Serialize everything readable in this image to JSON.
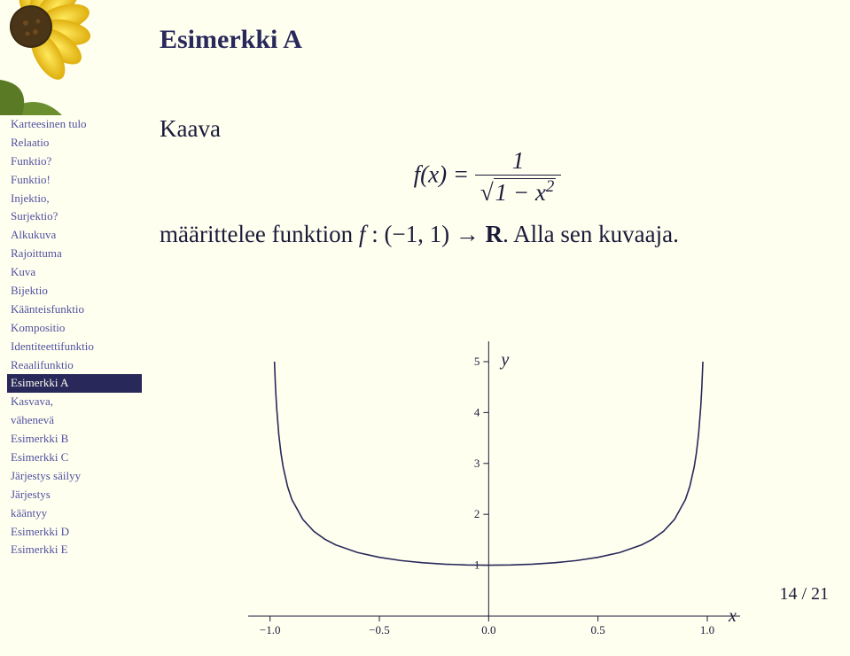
{
  "title": "Esimerkki A",
  "sidebar": {
    "items": [
      {
        "label": "Karteesinen tulo"
      },
      {
        "label": "Relaatio"
      },
      {
        "label": "Funktio?"
      },
      {
        "label": "Funktio!"
      },
      {
        "label": "Injektio,"
      },
      {
        "label": "Surjektio?"
      },
      {
        "label": "Alkukuva"
      },
      {
        "label": "Rajoittuma"
      },
      {
        "label": "Kuva"
      },
      {
        "label": "Bijektio"
      },
      {
        "label": "Käänteisfunktio"
      },
      {
        "label": "Kompositio"
      },
      {
        "label": "Identiteettifunktio"
      },
      {
        "label": "Reaalifunktio"
      },
      {
        "label": "Esimerkki A"
      },
      {
        "label": "Kasvava,"
      },
      {
        "label": "vähenevä"
      },
      {
        "label": "Esimerkki B"
      },
      {
        "label": "Esimerkki C"
      },
      {
        "label": "Järjestys säilyy"
      },
      {
        "label": "Järjestys"
      },
      {
        "label": "kääntyy"
      },
      {
        "label": "Esimerkki D"
      },
      {
        "label": "Esimerkki E"
      }
    ],
    "active_index": 14
  },
  "content": {
    "kaava": "Kaava",
    "formula_lhs": "f(x) = ",
    "formula_num": "1",
    "formula_den_pre": "√",
    "formula_den_expr": "1 − x",
    "formula_den_sup": "2",
    "line2_a": "määrittelee funktion ",
    "line2_f": "f",
    "line2_b": " : (−1, 1) → ",
    "line2_R": "R",
    "line2_c": ". Alla sen kuvaaja."
  },
  "graph": {
    "xlabel": "x",
    "ylabel": "y",
    "xticks": [
      {
        "v": -1.0,
        "label": "−1.0"
      },
      {
        "v": -0.5,
        "label": "−0.5"
      },
      {
        "v": 0.0,
        "label": "0.0"
      },
      {
        "v": 0.5,
        "label": "0.5"
      },
      {
        "v": 1.0,
        "label": "1.0"
      }
    ],
    "yticks": [
      {
        "v": 1,
        "label": "1"
      },
      {
        "v": 2,
        "label": "2"
      },
      {
        "v": 3,
        "label": "3"
      },
      {
        "v": 4,
        "label": "4"
      },
      {
        "v": 5,
        "label": "5"
      }
    ],
    "xlim": [
      -1.1,
      1.15
    ],
    "ylim": [
      0,
      5.4
    ],
    "curve_color": "#28285a",
    "axis_color": "#1a1a3a",
    "tick_fontsize": 13,
    "label_fontsize": 20,
    "curve_points": [
      [
        -0.9798,
        5.0
      ],
      [
        -0.975,
        4.49
      ],
      [
        -0.97,
        4.11
      ],
      [
        -0.96,
        3.57
      ],
      [
        -0.95,
        3.2
      ],
      [
        -0.94,
        2.93
      ],
      [
        -0.92,
        2.55
      ],
      [
        -0.9,
        2.29
      ],
      [
        -0.85,
        1.9
      ],
      [
        -0.8,
        1.667
      ],
      [
        -0.75,
        1.512
      ],
      [
        -0.7,
        1.4
      ],
      [
        -0.6,
        1.25
      ],
      [
        -0.5,
        1.155
      ],
      [
        -0.4,
        1.091
      ],
      [
        -0.3,
        1.048
      ],
      [
        -0.2,
        1.021
      ],
      [
        -0.1,
        1.005
      ],
      [
        0.0,
        1.0
      ],
      [
        0.1,
        1.005
      ],
      [
        0.2,
        1.021
      ],
      [
        0.3,
        1.048
      ],
      [
        0.4,
        1.091
      ],
      [
        0.5,
        1.155
      ],
      [
        0.6,
        1.25
      ],
      [
        0.7,
        1.4
      ],
      [
        0.75,
        1.512
      ],
      [
        0.8,
        1.667
      ],
      [
        0.85,
        1.9
      ],
      [
        0.9,
        2.29
      ],
      [
        0.92,
        2.55
      ],
      [
        0.94,
        2.93
      ],
      [
        0.95,
        3.2
      ],
      [
        0.96,
        3.57
      ],
      [
        0.97,
        4.11
      ],
      [
        0.975,
        4.49
      ],
      [
        0.9798,
        5.0
      ]
    ]
  },
  "page": {
    "current": "14",
    "total": "21",
    "sep": " / "
  },
  "colors": {
    "bg": "#fffff0",
    "heading": "#28285a",
    "link": "#5050a0",
    "text": "#1a1a3a"
  }
}
